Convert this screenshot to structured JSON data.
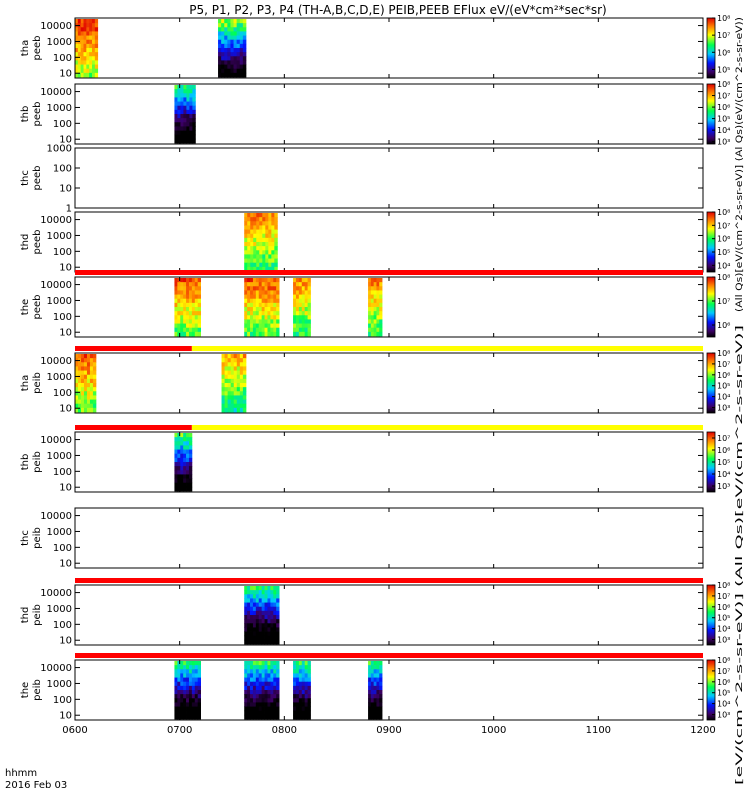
{
  "title": "P5, P1, P2, P3, P4 (TH-A,B,C,D,E) PEIB,PEEB EFlux eV/(eV*cm²*sec*sr)",
  "time_axis_label": "hhmm",
  "date_label": "2016 Feb 03",
  "x_ticks": [
    "0600",
    "0700",
    "0800",
    "0900",
    "1000",
    "1100",
    "1200"
  ],
  "colorbar_labels": {
    "peeb": "(All Qs)[eV/(cm^2-s-sr-eV)] (Al Qs)(eV/(cm^2-s-sr-eV))",
    "peib": "[eV/(cm^2-s-sr-eV)] (All Qs)[eV/(cm^2-s-sr-eV)]"
  },
  "colors": {
    "flag_red": "#ff0000",
    "flag_yellow": "#ffff00"
  },
  "chart_data": [
    {
      "type": "heatmap",
      "panel": "tha_peeb",
      "ylabel": [
        "tha",
        "peeb"
      ],
      "ylim": [
        5,
        30000
      ],
      "yscale": "log",
      "y_ticks": [
        "10",
        "100",
        "1000",
        "10000"
      ],
      "colorbar": true,
      "cb_ticks": [
        "10⁵",
        "10⁶",
        "10⁷",
        "10⁸"
      ],
      "cb_range": [
        4.5,
        8
      ],
      "blocks": [
        {
          "t0": "0600",
          "t1": "0613",
          "level": 0.85
        },
        {
          "t0": "0722",
          "t1": "0738",
          "level": 0.55
        }
      ]
    },
    {
      "type": "heatmap",
      "panel": "thb_peeb",
      "ylabel": [
        "thb",
        "peeb"
      ],
      "ylim": [
        5,
        30000
      ],
      "yscale": "log",
      "y_ticks": [
        "10",
        "100",
        "1000",
        "10000"
      ],
      "colorbar": true,
      "cb_ticks": [
        "10³",
        "10⁴",
        "10⁵",
        "10⁶",
        "10⁷",
        "10⁸"
      ],
      "cb_range": [
        2.8,
        8
      ],
      "blocks": [
        {
          "t0": "0657",
          "t1": "0709",
          "level": 0.45
        }
      ]
    },
    {
      "type": "heatmap",
      "panel": "thc_peeb",
      "ylabel": [
        "thc",
        "peeb"
      ],
      "ylim": [
        1,
        1000
      ],
      "yscale": "log",
      "y_ticks": [
        "1",
        "10",
        "100",
        "1000"
      ],
      "colorbar": false,
      "blocks": []
    },
    {
      "type": "heatmap",
      "panel": "thd_peeb",
      "ylabel": [
        "thd",
        "peeb"
      ],
      "ylim": [
        5,
        30000
      ],
      "yscale": "log",
      "y_ticks": [
        "10",
        "100",
        "1000",
        "10000"
      ],
      "colorbar": true,
      "cb_ticks": [
        "10⁴",
        "10⁵",
        "10⁶",
        "10⁷",
        "10⁸"
      ],
      "cb_range": [
        3.5,
        8
      ],
      "blocks": [
        {
          "t0": "0737",
          "t1": "0756",
          "level": 0.75
        }
      ]
    },
    {
      "type": "heatmap",
      "panel": "the_peeb",
      "ylabel": [
        "the",
        "peeb"
      ],
      "ylim": [
        5,
        30000
      ],
      "yscale": "log",
      "y_ticks": [
        "10",
        "100",
        "1000",
        "10000"
      ],
      "colorbar": true,
      "cb_ticks": [
        "10⁶",
        "10⁷",
        "10⁸"
      ],
      "cb_range": [
        5.5,
        8
      ],
      "flag_above": [
        {
          "t0": "0600",
          "t1": "1200",
          "color": "red"
        }
      ],
      "blocks": [
        {
          "t0": "0657",
          "t1": "0712",
          "level": 0.8
        },
        {
          "t0": "0737",
          "t1": "0757",
          "level": 0.8
        },
        {
          "t0": "0805",
          "t1": "0815",
          "level": 0.75
        },
        {
          "t0": "0848",
          "t1": "0856",
          "level": 0.75
        }
      ]
    },
    {
      "type": "heatmap",
      "panel": "tha_peib",
      "ylabel": [
        "tha",
        "peib"
      ],
      "ylim": [
        5,
        30000
      ],
      "yscale": "log",
      "y_ticks": [
        "10",
        "100",
        "1000",
        "10000"
      ],
      "colorbar": true,
      "cb_ticks": [
        "10³",
        "10⁴",
        "10⁵",
        "10⁶",
        "10⁷",
        "10⁸"
      ],
      "cb_range": [
        2.5,
        8
      ],
      "flag_above": [
        {
          "t0": "0600",
          "t1": "0667",
          "color": "red"
        },
        {
          "t0": "0667",
          "t1": "1200",
          "color": "yellow"
        }
      ],
      "blocks": [
        {
          "t0": "0600",
          "t1": "0612",
          "level": 0.8
        },
        {
          "t0": "0724",
          "t1": "0738",
          "level": 0.7
        }
      ]
    },
    {
      "type": "heatmap",
      "panel": "thb_peib",
      "ylabel": [
        "thb",
        "peib"
      ],
      "ylim": [
        5,
        30000
      ],
      "yscale": "log",
      "y_ticks": [
        "10",
        "100",
        "1000",
        "10000"
      ],
      "colorbar": true,
      "cb_ticks": [
        "10³",
        "10⁴",
        "10⁵",
        "10⁶",
        "10⁷"
      ],
      "cb_range": [
        2.5,
        7.5
      ],
      "flag_above": [
        {
          "t0": "0600",
          "t1": "0667",
          "color": "red"
        },
        {
          "t0": "0667",
          "t1": "1200",
          "color": "yellow"
        }
      ],
      "blocks": [
        {
          "t0": "0657",
          "t1": "0667",
          "level": 0.5
        }
      ]
    },
    {
      "type": "heatmap",
      "panel": "thc_peib",
      "ylabel": [
        "thc",
        "peib"
      ],
      "ylim": [
        5,
        30000
      ],
      "yscale": "log",
      "y_ticks": [
        "10",
        "100",
        "1000",
        "10000"
      ],
      "colorbar": false,
      "blocks": []
    },
    {
      "type": "heatmap",
      "panel": "thd_peib",
      "ylabel": [
        "thd",
        "peib"
      ],
      "ylim": [
        5,
        30000
      ],
      "yscale": "log",
      "y_ticks": [
        "10",
        "100",
        "1000",
        "10000"
      ],
      "colorbar": true,
      "cb_ticks": [
        "10³",
        "10⁴",
        "10⁵",
        "10⁶",
        "10⁷",
        "10⁸"
      ],
      "cb_range": [
        2.5,
        8
      ],
      "flag_above": [
        {
          "t0": "0600",
          "t1": "1200",
          "color": "red"
        }
      ],
      "blocks": [
        {
          "t0": "0737",
          "t1": "0757",
          "level": 0.45
        }
      ]
    },
    {
      "type": "heatmap",
      "panel": "the_peib",
      "ylabel": [
        "the",
        "peib"
      ],
      "ylim": [
        5,
        30000
      ],
      "yscale": "log",
      "y_ticks": [
        "10",
        "100",
        "1000",
        "10000"
      ],
      "colorbar": true,
      "cb_ticks": [
        "10³",
        "10⁴",
        "10⁵",
        "10⁶",
        "10⁷",
        "10⁸"
      ],
      "cb_range": [
        2.5,
        8
      ],
      "flag_above": [
        {
          "t0": "0600",
          "t1": "1200",
          "color": "red"
        }
      ],
      "blocks": [
        {
          "t0": "0657",
          "t1": "0712",
          "level": 0.45
        },
        {
          "t0": "0737",
          "t1": "0757",
          "level": 0.45
        },
        {
          "t0": "0805",
          "t1": "0815",
          "level": 0.45
        },
        {
          "t0": "0848",
          "t1": "0856",
          "level": 0.45
        }
      ]
    }
  ]
}
